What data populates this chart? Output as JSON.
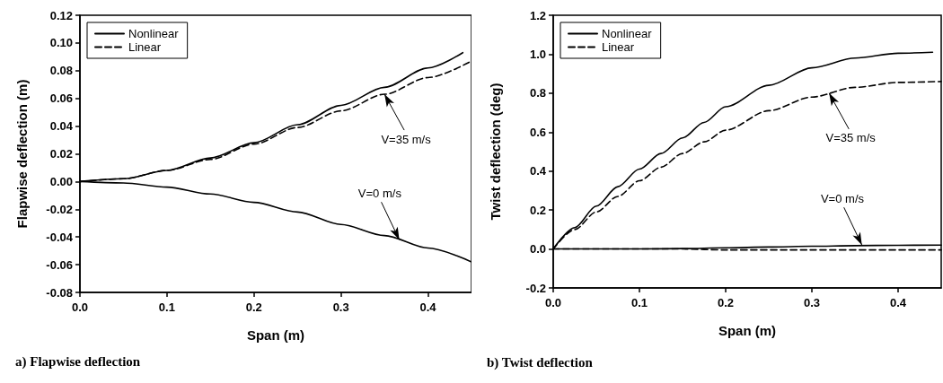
{
  "chart_data": [
    {
      "type": "line",
      "title": "a) Flapwise deflection",
      "xlabel": "Span (m)",
      "ylabel": "Flapwise deflection (m)",
      "xlim": [
        0,
        0.45
      ],
      "xticks": [
        {
          "value": 0,
          "label": "0.0"
        },
        0.1,
        0.2,
        0.3,
        0.4
      ],
      "ylim": [
        -0.08,
        0.12
      ],
      "yticks": [
        -0.08,
        -0.06,
        -0.04,
        -0.02,
        {
          "value": 0,
          "label": "0.00"
        },
        0.02,
        0.04,
        0.06,
        0.08,
        {
          "value": 0.1,
          "label": "0.10"
        },
        0.12
      ],
      "grid": false,
      "legend": "top left",
      "marker": "none",
      "series": [
        {
          "name": "Nonlinear",
          "color": "#000000",
          "line_style": "solid",
          "x": [
            0,
            0.05,
            0.1,
            0.15,
            0.2,
            0.25,
            0.3,
            0.35,
            0.4,
            0.44
          ],
          "values": [
            0,
            0.002,
            0.008,
            0.017,
            0.028,
            0.041,
            0.055,
            0.068,
            0.082,
            0.093
          ]
        },
        {
          "name": "Linear",
          "color": "#000000",
          "line_style": "dashed",
          "x": [
            0,
            0.05,
            0.1,
            0.15,
            0.2,
            0.25,
            0.3,
            0.35,
            0.4,
            0.45
          ],
          "values": [
            0,
            0.002,
            0.008,
            0.016,
            0.027,
            0.039,
            0.051,
            0.063,
            0.075,
            0.087
          ]
        },
        {
          "color": "#000000",
          "line_style": "solid",
          "x": [
            0,
            0.05,
            0.1,
            0.15,
            0.2,
            0.25,
            0.3,
            0.35,
            0.4,
            0.45
          ],
          "values": [
            0,
            -0.001,
            -0.004,
            -0.009,
            -0.015,
            -0.022,
            -0.031,
            -0.039,
            -0.048,
            -0.058
          ]
        }
      ],
      "annotations": [
        {
          "text": "V=35 m/s",
          "x": 0.35,
          "y": 0.063
        },
        {
          "text": "V=0 m/s",
          "x": 0.367,
          "y": -0.042
        }
      ]
    },
    {
      "type": "line",
      "title": "b) Twist deflection",
      "xlabel": "Span (m)",
      "ylabel": "Twist deflection (deg)",
      "xlim": [
        0,
        0.45
      ],
      "xticks": [
        {
          "value": 0,
          "label": "0.0"
        },
        0.1,
        0.2,
        0.3,
        0.4
      ],
      "ylim": [
        -0.2,
        1.2
      ],
      "yticks": [
        -0.2,
        {
          "value": 0,
          "label": "0.0"
        },
        0.2,
        0.4,
        0.6,
        0.8,
        {
          "value": 1,
          "label": "1.0"
        },
        1.2
      ],
      "grid": false,
      "legend": "top left",
      "marker": "none",
      "series": [
        {
          "name": "Nonlinear",
          "color": "#000000",
          "line_style": "solid",
          "x": [
            0,
            0.025,
            0.05,
            0.075,
            0.1,
            0.125,
            0.15,
            0.175,
            0.2,
            0.25,
            0.3,
            0.35,
            0.4,
            0.44
          ],
          "values": [
            0,
            0.11,
            0.22,
            0.32,
            0.41,
            0.49,
            0.57,
            0.65,
            0.73,
            0.84,
            0.93,
            0.98,
            1.005,
            1.01
          ]
        },
        {
          "name": "Linear",
          "color": "#000000",
          "line_style": "dashed",
          "x": [
            0,
            0.025,
            0.05,
            0.075,
            0.1,
            0.125,
            0.15,
            0.175,
            0.2,
            0.25,
            0.3,
            0.35,
            0.4,
            0.45
          ],
          "values": [
            0,
            0.1,
            0.19,
            0.27,
            0.35,
            0.42,
            0.49,
            0.55,
            0.61,
            0.71,
            0.78,
            0.83,
            0.855,
            0.86
          ]
        },
        {
          "color": "#000000",
          "line_style": "solid",
          "x": [
            0,
            0.1,
            0.15,
            0.2,
            0.25,
            0.3,
            0.35,
            0.4,
            0.45
          ],
          "values": [
            0,
            0,
            0.002,
            0.006,
            0.01,
            0.014,
            0.017,
            0.019,
            0.02
          ]
        },
        {
          "color": "#000000",
          "line_style": "dashed",
          "x": [
            0,
            0.15,
            0.2,
            0.3,
            0.45
          ],
          "values": [
            0,
            0,
            -0.005,
            -0.005,
            -0.005
          ]
        }
      ],
      "annotations": [
        {
          "text": "V=35 m/s",
          "x": 0.32,
          "y": 0.8
        },
        {
          "text": "V=0 m/s",
          "x": 0.358,
          "y": 0.02
        }
      ]
    }
  ]
}
